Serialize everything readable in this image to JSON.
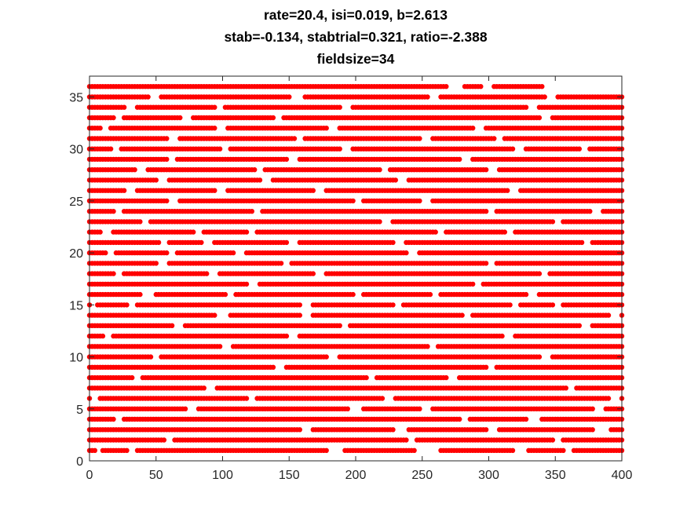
{
  "chart_data": {
    "type": "scatter",
    "title": [
      "rate=20.4, isi=0.019, b=2.613",
      "stab=-0.134, stabtrial=0.321, ratio=-2.388",
      "fieldsize=34"
    ],
    "xlabel": "",
    "ylabel": "",
    "xlim": [
      0,
      400
    ],
    "ylim": [
      0,
      37
    ],
    "xticks": [
      0,
      50,
      100,
      150,
      200,
      250,
      300,
      350,
      400
    ],
    "yticks": [
      0,
      5,
      10,
      15,
      20,
      25,
      30,
      35
    ],
    "grid": false,
    "marker_color": "#ff0000",
    "axis_color": "#262626",
    "raster": {
      "row_min": 1,
      "row_max": 36,
      "x_step": 2,
      "x_max": 400,
      "row_gaps": {
        "1": [
          [
            6,
            8
          ],
          [
            30,
            34
          ],
          [
            180,
            190
          ],
          [
            245,
            262
          ],
          [
            320,
            328
          ],
          [
            358,
            362
          ]
        ],
        "2": [
          [
            58,
            62
          ],
          [
            240,
            244
          ],
          [
            350,
            354
          ]
        ],
        "3": [
          [
            160,
            166
          ],
          [
            230,
            238
          ],
          [
            300,
            306
          ],
          [
            380,
            390
          ]
        ],
        "4": [
          [
            20,
            24
          ],
          [
            280,
            284
          ],
          [
            330,
            338
          ]
        ],
        "5": [
          [
            74,
            80
          ],
          [
            196,
            204
          ],
          [
            250,
            256
          ],
          [
            380,
            386
          ]
        ],
        "6": [
          [
            2,
            6
          ],
          [
            120,
            124
          ],
          [
            222,
            228
          ],
          [
            392,
            398
          ]
        ],
        "7": [
          [
            88,
            94
          ],
          [
            360,
            364
          ]
        ],
        "8": [
          [
            34,
            38
          ],
          [
            210,
            214
          ],
          [
            270,
            276
          ]
        ],
        "9": [
          [
            140,
            146
          ],
          [
            300,
            304
          ]
        ],
        "10": [
          [
            48,
            52
          ],
          [
            180,
            186
          ],
          [
            340,
            346
          ]
        ],
        "11": [
          [
            100,
            106
          ],
          [
            256,
            260
          ]
        ],
        "12": [
          [
            12,
            16
          ],
          [
            150,
            156
          ],
          [
            312,
            318
          ]
        ],
        "13": [
          [
            64,
            70
          ],
          [
            190,
            194
          ],
          [
            370,
            376
          ]
        ],
        "14": [
          [
            96,
            104
          ],
          [
            160,
            166
          ],
          [
            282,
            286
          ],
          [
            392,
            398
          ]
        ],
        "15": [
          [
            2,
            4
          ],
          [
            30,
            34
          ],
          [
            160,
            166
          ],
          [
            230,
            234
          ],
          [
            318,
            322
          ],
          [
            350,
            354
          ]
        ],
        "16": [
          [
            40,
            48
          ],
          [
            104,
            108
          ],
          [
            200,
            204
          ],
          [
            258,
            262
          ],
          [
            330,
            336
          ]
        ],
        "17": [
          [
            120,
            126
          ],
          [
            290,
            294
          ]
        ],
        "18": [
          [
            20,
            24
          ],
          [
            90,
            96
          ],
          [
            170,
            176
          ],
          [
            340,
            344
          ]
        ],
        "19": [
          [
            52,
            58
          ],
          [
            146,
            150
          ],
          [
            300,
            304
          ]
        ],
        "20": [
          [
            14,
            18
          ],
          [
            60,
            64
          ],
          [
            110,
            116
          ],
          [
            240,
            246
          ]
        ],
        "21": [
          [
            54,
            58
          ],
          [
            86,
            92
          ],
          [
            150,
            156
          ],
          [
            230,
            236
          ],
          [
            372,
            376
          ]
        ],
        "22": [
          [
            10,
            16
          ],
          [
            80,
            84
          ],
          [
            120,
            124
          ],
          [
            262,
            266
          ],
          [
            314,
            318
          ]
        ],
        "23": [
          [
            40,
            44
          ],
          [
            220,
            226
          ],
          [
            350,
            354
          ]
        ],
        "24": [
          [
            20,
            24
          ],
          [
            124,
            128
          ],
          [
            300,
            304
          ],
          [
            378,
            384
          ]
        ],
        "25": [
          [
            60,
            66
          ],
          [
            200,
            204
          ],
          [
            250,
            256
          ]
        ],
        "26": [
          [
            28,
            34
          ],
          [
            96,
            102
          ],
          [
            170,
            176
          ],
          [
            316,
            322
          ]
        ],
        "27": [
          [
            52,
            58
          ],
          [
            130,
            136
          ],
          [
            232,
            238
          ]
        ],
        "28": [
          [
            36,
            42
          ],
          [
            126,
            130
          ],
          [
            220,
            224
          ],
          [
            300,
            306
          ]
        ],
        "29": [
          [
            60,
            64
          ],
          [
            150,
            156
          ],
          [
            280,
            286
          ]
        ],
        "30": [
          [
            18,
            22
          ],
          [
            100,
            104
          ],
          [
            190,
            196
          ],
          [
            320,
            326
          ],
          [
            370,
            374
          ]
        ],
        "31": [
          [
            60,
            66
          ],
          [
            156,
            160
          ],
          [
            250,
            256
          ],
          [
            306,
            310
          ]
        ],
        "32": [
          [
            10,
            14
          ],
          [
            96,
            102
          ],
          [
            180,
            186
          ],
          [
            290,
            296
          ]
        ],
        "33": [
          [
            20,
            24
          ],
          [
            70,
            76
          ],
          [
            140,
            144
          ],
          [
            340,
            346
          ]
        ],
        "34": [
          [
            28,
            34
          ],
          [
            96,
            100
          ],
          [
            190,
            196
          ],
          [
            330,
            336
          ]
        ],
        "35": [
          [
            46,
            52
          ],
          [
            152,
            160
          ],
          [
            256,
            262
          ],
          [
            344,
            350
          ]
        ],
        "36": [
          [
            270,
            280
          ],
          [
            296,
            302
          ],
          [
            342,
            400
          ]
        ]
      }
    }
  }
}
